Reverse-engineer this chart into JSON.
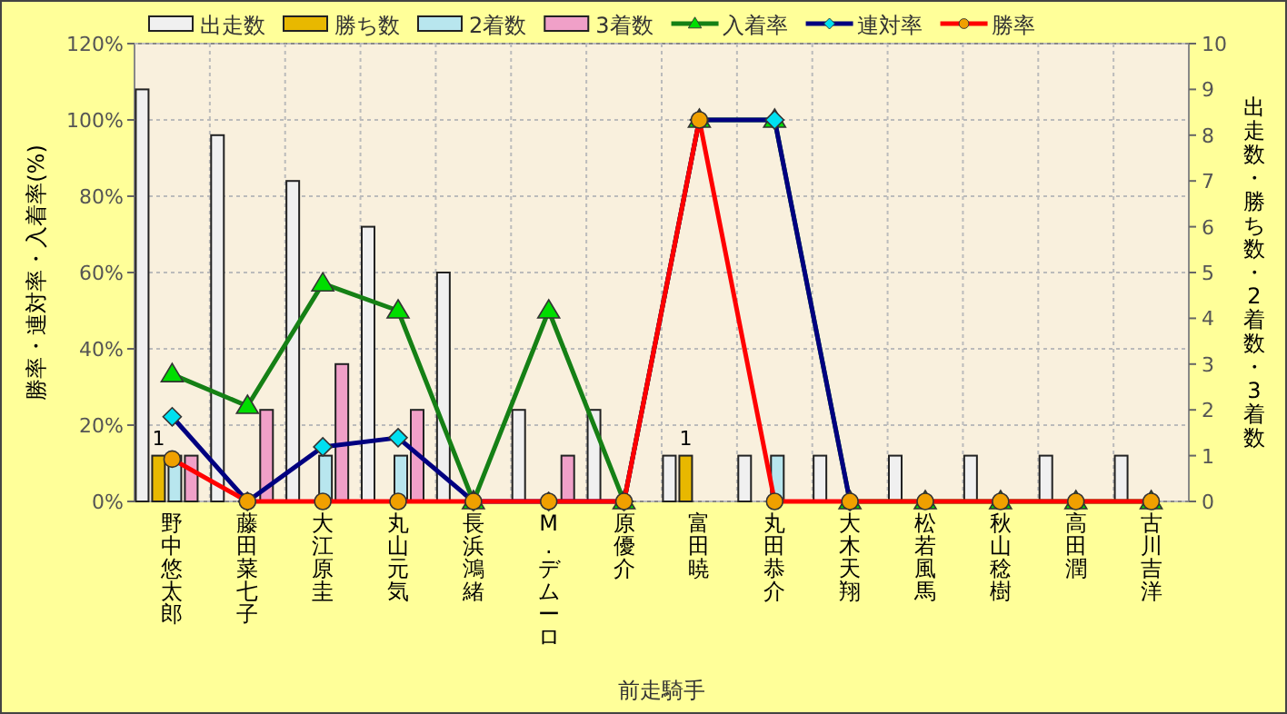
{
  "chart_data": {
    "type": "bar",
    "xlabel": "前走騎手",
    "ylabel": "勝率・連対率・入着率(%)",
    "y2label": "出走数・勝ち数・2着数・3着数",
    "categories": [
      "野中悠太郎",
      "藤田菜七子",
      "大江原圭",
      "丸山元気",
      "長浜鴻緒",
      "M.デムーロ",
      "原優介",
      "富田暁",
      "丸田恭介",
      "大木天翔",
      "松若風馬",
      "秋山稔樹",
      "高田潤",
      "古川吉洋"
    ],
    "series": [
      {
        "name": "出走数",
        "axis": "y2",
        "color": "#f0f0f0",
        "values": [
          9,
          8,
          7,
          6,
          5,
          2,
          2,
          1,
          1,
          1,
          1,
          1,
          1,
          1
        ]
      },
      {
        "name": "勝ち数",
        "axis": "y2",
        "color": "#e8b800",
        "values": [
          1,
          0,
          0,
          0,
          0,
          0,
          0,
          1,
          0,
          0,
          0,
          0,
          0,
          0
        ],
        "value_labels": [
          "1",
          null,
          null,
          null,
          null,
          null,
          null,
          "1",
          null,
          null,
          null,
          null,
          null,
          null
        ]
      },
      {
        "name": "2着数",
        "axis": "y2",
        "color": "#b8e6ee",
        "values": [
          1,
          0,
          1,
          1,
          0,
          0,
          0,
          0,
          1,
          0,
          0,
          0,
          0,
          0
        ]
      },
      {
        "name": "3着数",
        "axis": "y2",
        "color": "#f0a0c8",
        "values": [
          1,
          2,
          3,
          2,
          0,
          1,
          0,
          0,
          0,
          0,
          0,
          0,
          0,
          0
        ]
      },
      {
        "name": "入着率",
        "type": "line",
        "color": "#158015",
        "marker": "triangle",
        "values": [
          33.3,
          25,
          57.1,
          50,
          0,
          50,
          0,
          100,
          100,
          0,
          0,
          0,
          0,
          0
        ]
      },
      {
        "name": "連対率",
        "type": "line",
        "color": "#000080",
        "marker": "diamond",
        "values": [
          22.2,
          0,
          14.3,
          16.7,
          0,
          0,
          0,
          100,
          100,
          0,
          null,
          null,
          null,
          null
        ]
      },
      {
        "name": "勝率",
        "type": "line",
        "color": "#ff0000",
        "marker": "circle",
        "values": [
          11.1,
          0,
          0,
          0,
          0,
          0,
          0,
          100,
          0,
          0,
          0,
          0,
          0,
          0
        ]
      }
    ],
    "ylim": [
      0,
      120
    ],
    "yticks": [
      {
        "value": 0,
        "label": "0%"
      },
      {
        "value": 20,
        "label": "20%"
      },
      {
        "value": 40,
        "label": "40%"
      },
      {
        "value": 60,
        "label": "60%"
      },
      {
        "value": 80,
        "label": "80%"
      },
      {
        "value": 100,
        "label": "100%"
      },
      {
        "value": 120,
        "label": "120%"
      }
    ],
    "y2lim": [
      0,
      10
    ],
    "y2ticks": [
      0,
      1,
      2,
      3,
      4,
      5,
      6,
      7,
      8,
      9,
      10
    ],
    "grid": true,
    "legend": "top",
    "line_style": "solid"
  }
}
